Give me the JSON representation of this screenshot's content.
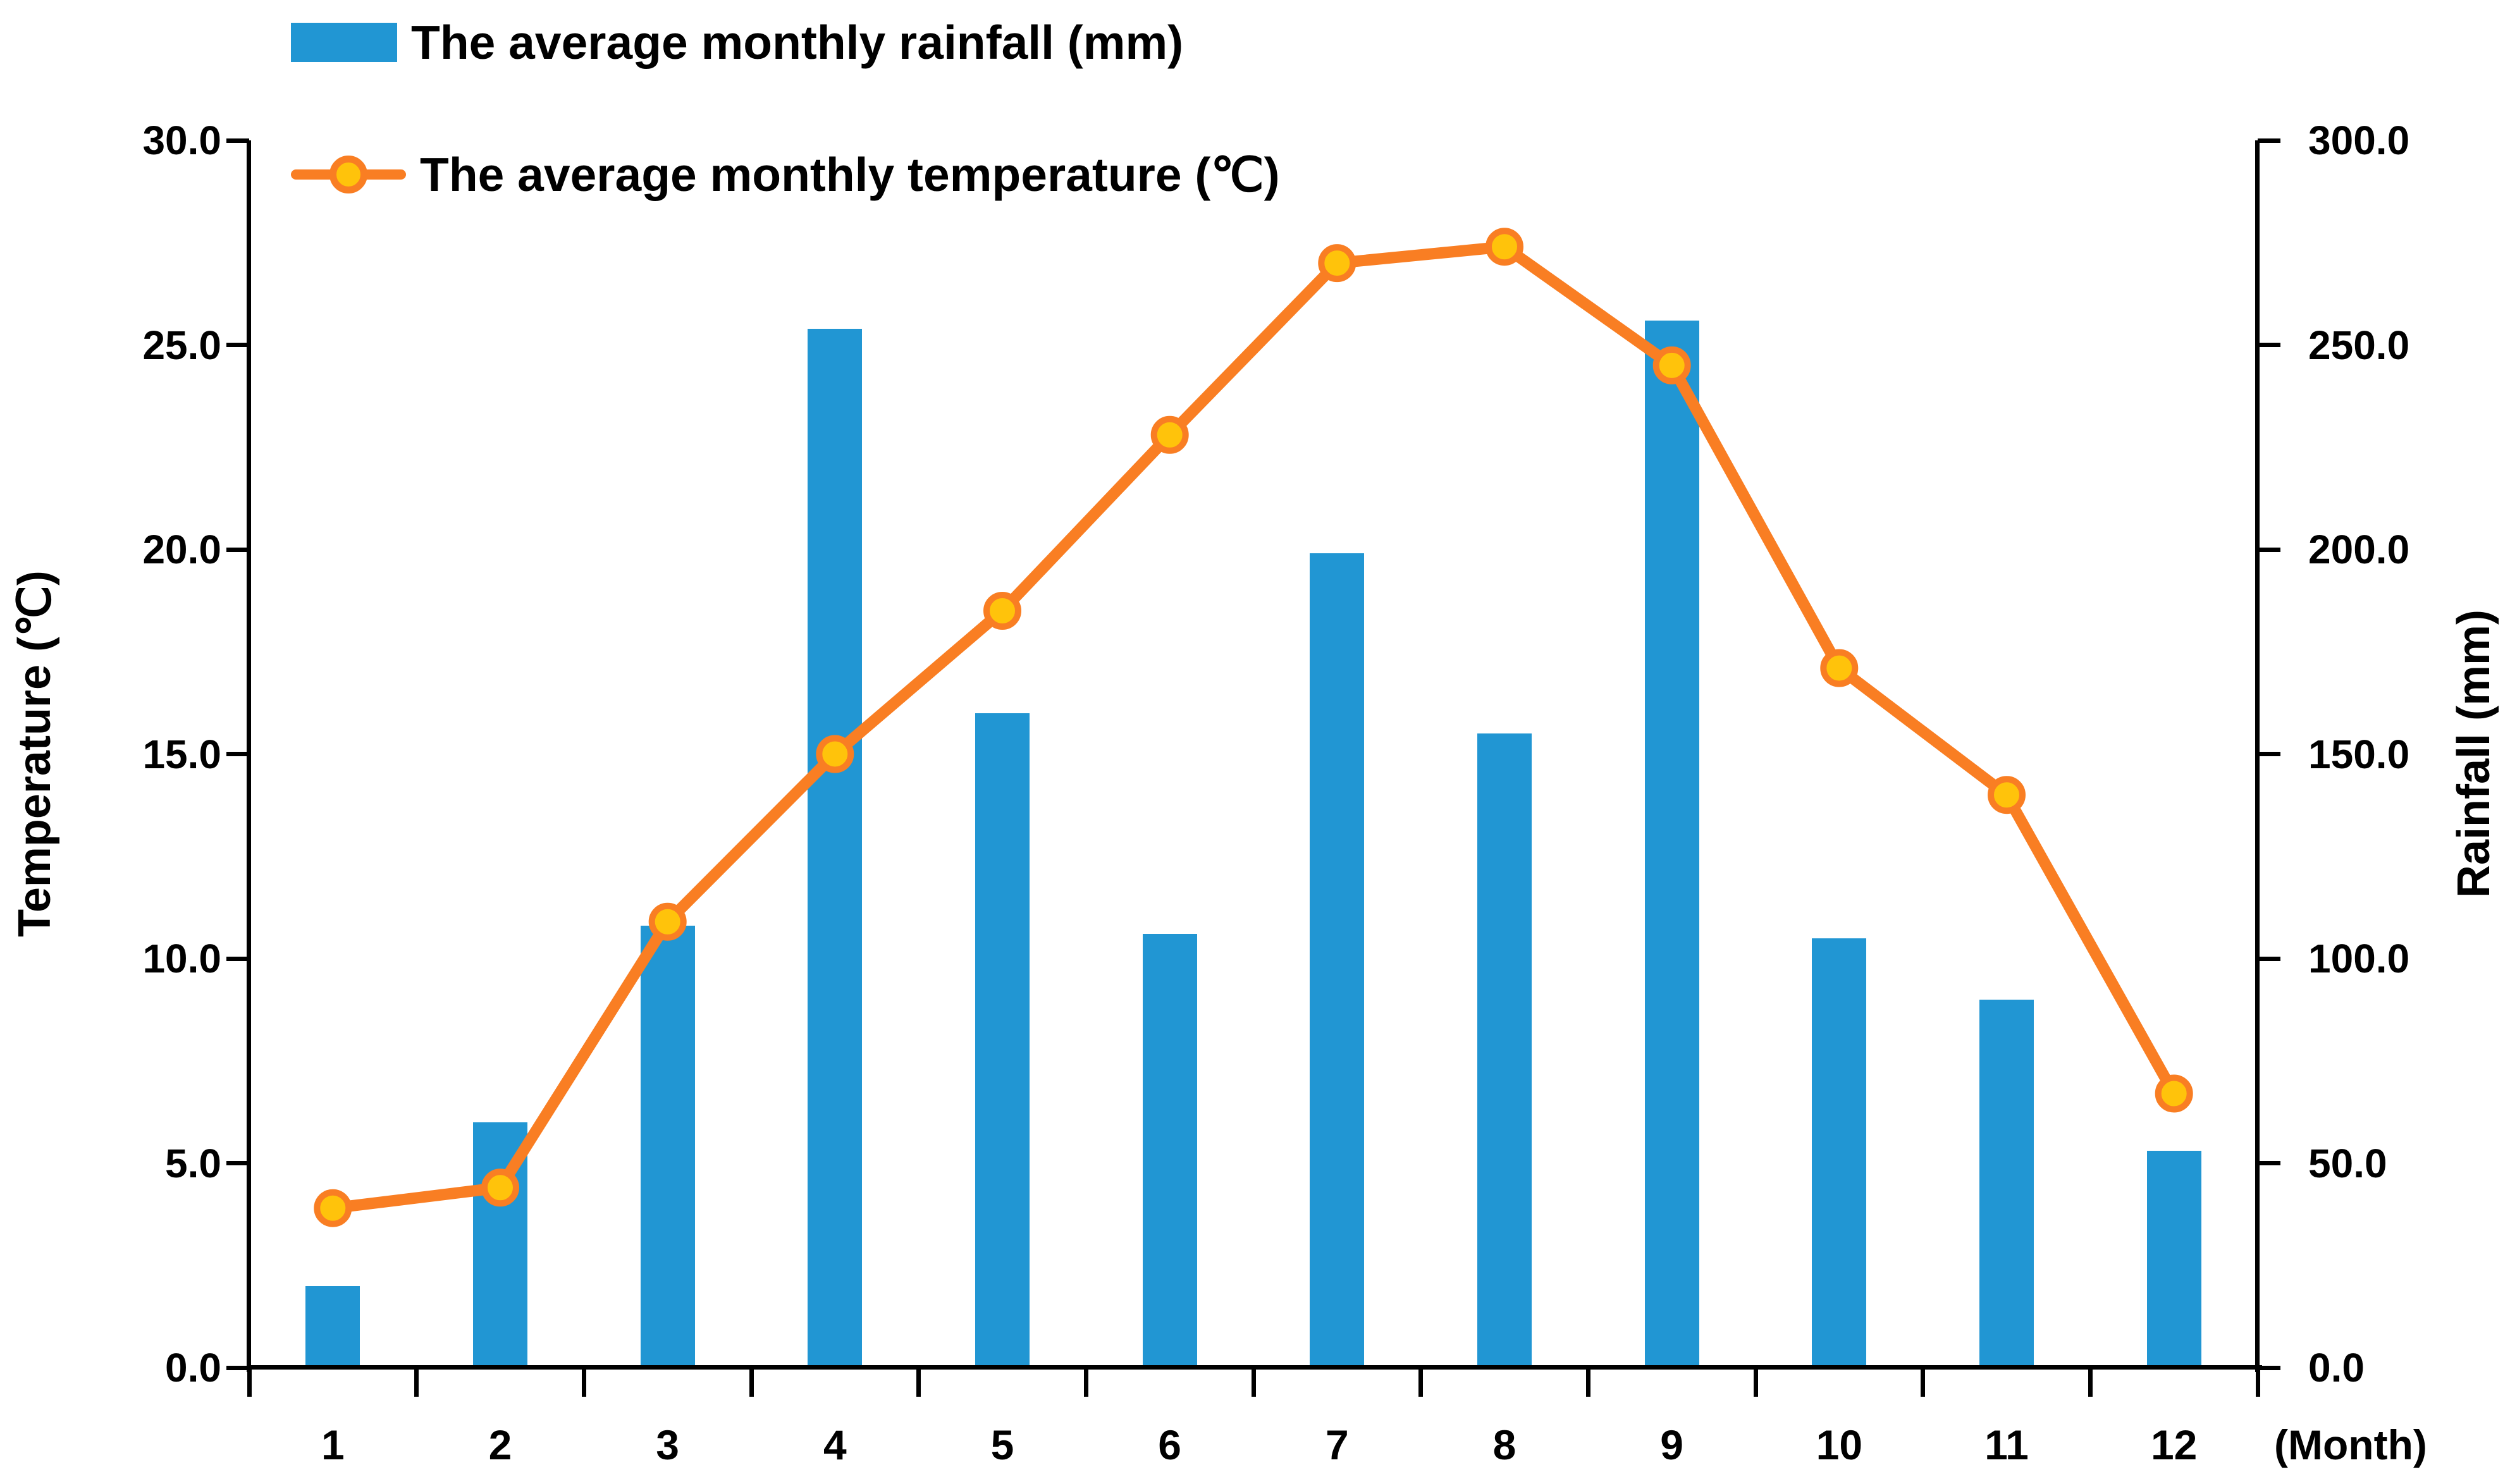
{
  "chart_data": {
    "type": "combo",
    "x_categories": [
      "1",
      "2",
      "3",
      "4",
      "5",
      "6",
      "7",
      "8",
      "9",
      "10",
      "11",
      "12"
    ],
    "x_axis_unit_label": "(Month)",
    "series": [
      {
        "name": "The average monthly rainfall (mm)",
        "type": "bar",
        "axis": "right",
        "values": [
          20,
          60,
          108,
          254,
          160,
          106,
          199,
          155,
          256,
          105,
          90,
          53
        ]
      },
      {
        "name": "The average monthly temperature (℃)",
        "type": "line",
        "axis": "left",
        "values": [
          3.9,
          4.4,
          10.9,
          15.0,
          18.5,
          22.8,
          27.0,
          27.4,
          24.5,
          17.1,
          14.0,
          6.7
        ]
      }
    ],
    "left_axis": {
      "title": "Temperature (℃)",
      "min": 0.0,
      "max": 30.0,
      "step": 5.0,
      "tick_labels": [
        "30.0",
        "25.0",
        "20.0",
        "15.0",
        "10.0",
        "5.0",
        "0.0"
      ]
    },
    "right_axis": {
      "title": "Rainfall (mm)",
      "min": 0.0,
      "max": 300.0,
      "step": 50.0,
      "tick_labels": [
        "300.0",
        "250.0",
        "200.0",
        "150.0",
        "100.0",
        "50.0",
        "0.0"
      ]
    },
    "grid": false,
    "legend_position": "top-left"
  },
  "legend": {
    "items": [
      {
        "label": "The average monthly rainfall (mm)",
        "swatch": "bar"
      },
      {
        "label": "The average monthly temperature (℃)",
        "swatch": "line-marker"
      }
    ]
  },
  "colors": {
    "bar": "#2196d3",
    "line": "#f97e23",
    "marker_fill": "#ffc30b",
    "marker_stroke": "#f97e23",
    "axis": "#000000",
    "text": "#000000",
    "background": "#ffffff"
  }
}
